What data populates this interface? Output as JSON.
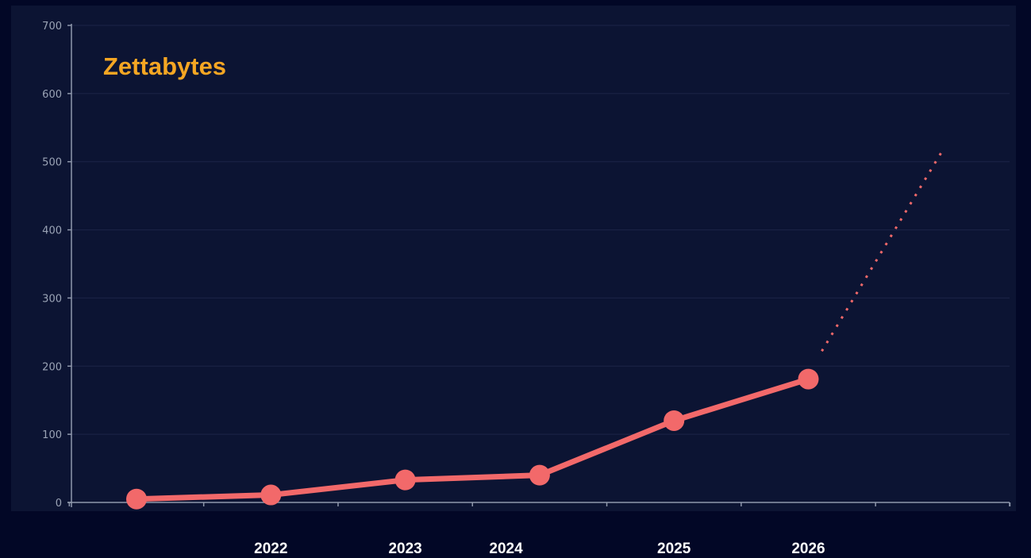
{
  "chart_data": {
    "type": "line",
    "ylabel": "Zettabytes",
    "ylim": [
      0,
      700
    ],
    "yticks": [
      "0",
      "100",
      "200",
      "300",
      "400",
      "500",
      "600",
      "700"
    ],
    "grid": true,
    "series": [
      {
        "values": [
          {
            "x": 1,
            "y": 5
          },
          {
            "x": 2,
            "y": 11
          },
          {
            "x": 3,
            "y": 33
          },
          {
            "x": 4,
            "y": 40
          },
          {
            "x": 5,
            "y": 120
          },
          {
            "x": 6,
            "y": 181
          }
        ]
      },
      {
        "style": "dotted",
        "values": [
          {
            "x": 6.1,
            "y": 222
          },
          {
            "x": 7,
            "y": 517
          }
        ]
      }
    ],
    "x_labels": [
      {
        "label": "2022",
        "x": 2
      },
      {
        "label": "2023",
        "x": 3
      },
      {
        "label": "2024",
        "x": 3.75
      },
      {
        "label": "2025",
        "x": 5
      },
      {
        "label": "2026",
        "x": 6
      }
    ],
    "colors": {
      "background": "#020726",
      "plot_background": "#0c1433",
      "line": "#f2696a",
      "axis": "#8f98ac",
      "grid": "#1c2547",
      "tick_text": "#9aa3b5",
      "ylabel": "#f5a623",
      "xlabel": "#ffffff"
    }
  }
}
